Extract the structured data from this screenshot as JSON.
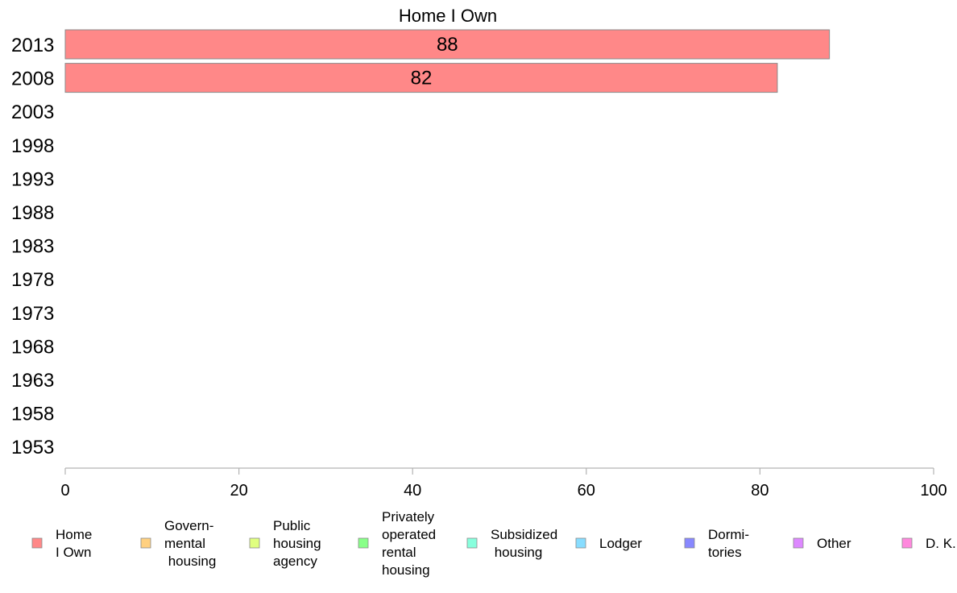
{
  "chart_data": {
    "type": "bar",
    "orientation": "horizontal",
    "title": "Home I Own",
    "categories": [
      "2013",
      "2008",
      "2003",
      "1998",
      "1993",
      "1988",
      "1983",
      "1978",
      "1973",
      "1968",
      "1963",
      "1958",
      "1953"
    ],
    "series": [
      {
        "name": "Home I Own",
        "color": "#ff8888",
        "values": [
          88,
          82,
          null,
          null,
          null,
          null,
          null,
          null,
          null,
          null,
          null,
          null,
          null
        ]
      }
    ],
    "data_labels": [
      "88",
      "82"
    ],
    "xlim": [
      0,
      100
    ],
    "xticks": [
      "0",
      "20",
      "40",
      "60",
      "80",
      "100"
    ],
    "grid": false,
    "legend_position": "bottom",
    "legend": [
      {
        "lines": [
          "Home",
          "I Own"
        ],
        "color": "#ff8888"
      },
      {
        "lines": [
          "Govern-",
          "mental",
          " housing"
        ],
        "color": "#ffd080"
      },
      {
        "lines": [
          "Public",
          "housing",
          "agency"
        ],
        "color": "#e0ff80"
      },
      {
        "lines": [
          "Privately",
          "operated",
          "rental",
          "housing"
        ],
        "color": "#88ff88"
      },
      {
        "lines": [
          "Subsidized",
          " housing"
        ],
        "color": "#88ffdd"
      },
      {
        "lines": [
          "Lodger"
        ],
        "color": "#88ddff"
      },
      {
        "lines": [
          "Dormi-",
          "tories"
        ],
        "color": "#8888ff"
      },
      {
        "lines": [
          "Other"
        ],
        "color": "#dd88ff"
      },
      {
        "lines": [
          "D. K."
        ],
        "color": "#ff88dd"
      }
    ]
  }
}
